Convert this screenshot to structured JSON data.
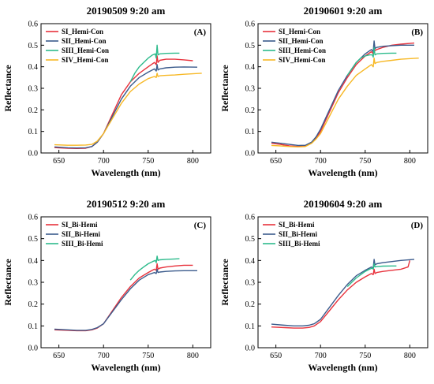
{
  "chart_data": [
    {
      "type": "line",
      "panel": "(A)",
      "title": "20190509 9:20 am",
      "xlabel": "Wavelength (nm)",
      "ylabel": "Reflectance",
      "xlim": [
        630,
        820
      ],
      "ylim": [
        0,
        0.6
      ],
      "xticks": [
        650,
        700,
        750,
        800
      ],
      "yticks": [
        0.0,
        0.1,
        0.2,
        0.3,
        0.4,
        0.5,
        0.6
      ],
      "legend_position": "top-left",
      "grid": false,
      "series": [
        {
          "name": "SI_Hemi-Con",
          "color": "#e8323c",
          "x": [
            645,
            660,
            670,
            680,
            687,
            693,
            700,
            710,
            720,
            730,
            740,
            750,
            757,
            759,
            760,
            761,
            763,
            770,
            780,
            790,
            800
          ],
          "y": [
            0.025,
            0.022,
            0.021,
            0.022,
            0.03,
            0.05,
            0.09,
            0.18,
            0.27,
            0.33,
            0.37,
            0.4,
            0.42,
            0.41,
            0.45,
            0.42,
            0.43,
            0.435,
            0.435,
            0.432,
            0.428
          ]
        },
        {
          "name": "SII_Hemi-Con",
          "color": "#3b5b8c",
          "x": [
            645,
            660,
            670,
            680,
            687,
            693,
            700,
            710,
            720,
            730,
            740,
            750,
            757,
            759,
            760,
            761,
            763,
            770,
            780,
            790,
            805
          ],
          "y": [
            0.028,
            0.024,
            0.023,
            0.024,
            0.03,
            0.05,
            0.09,
            0.17,
            0.25,
            0.31,
            0.35,
            0.375,
            0.39,
            0.38,
            0.41,
            0.385,
            0.39,
            0.395,
            0.398,
            0.399,
            0.398
          ]
        },
        {
          "name": "SIII_Hemi-Con",
          "color": "#2dbb8c",
          "x": [
            730,
            735,
            740,
            745,
            750,
            755,
            758,
            759,
            760,
            761,
            763,
            770,
            780,
            785
          ],
          "y": [
            0.33,
            0.37,
            0.4,
            0.42,
            0.44,
            0.455,
            0.46,
            0.44,
            0.5,
            0.455,
            0.46,
            0.462,
            0.463,
            0.463
          ]
        },
        {
          "name": "SIV_Hemi-Con",
          "color": "#f7b825",
          "x": [
            645,
            660,
            670,
            680,
            687,
            693,
            700,
            710,
            720,
            730,
            740,
            750,
            757,
            759,
            760,
            761,
            763,
            770,
            780,
            790,
            810
          ],
          "y": [
            0.038,
            0.036,
            0.036,
            0.037,
            0.04,
            0.055,
            0.09,
            0.16,
            0.23,
            0.285,
            0.32,
            0.345,
            0.355,
            0.35,
            0.37,
            0.355,
            0.358,
            0.36,
            0.362,
            0.365,
            0.37
          ]
        }
      ]
    },
    {
      "type": "line",
      "panel": "(B)",
      "title": "20190601 9:20 am",
      "xlabel": "Wavelength (nm)",
      "ylabel": "Reflectance",
      "xlim": [
        630,
        820
      ],
      "ylim": [
        0,
        0.6
      ],
      "xticks": [
        650,
        700,
        750,
        800
      ],
      "yticks": [
        0.0,
        0.1,
        0.2,
        0.3,
        0.4,
        0.5,
        0.6
      ],
      "legend_position": "top-left",
      "grid": false,
      "series": [
        {
          "name": "SI_Hemi-Con",
          "color": "#e8323c",
          "x": [
            645,
            655,
            665,
            675,
            683,
            690,
            695,
            700,
            710,
            720,
            730,
            740,
            750,
            757,
            759,
            760,
            761,
            763,
            770,
            780,
            790,
            805
          ],
          "y": [
            0.045,
            0.04,
            0.033,
            0.03,
            0.033,
            0.05,
            0.07,
            0.1,
            0.19,
            0.28,
            0.35,
            0.41,
            0.45,
            0.47,
            0.46,
            0.5,
            0.475,
            0.48,
            0.49,
            0.5,
            0.505,
            0.51
          ]
        },
        {
          "name": "SII_Hemi-Con",
          "color": "#3b5b8c",
          "x": [
            645,
            655,
            665,
            675,
            683,
            690,
            695,
            700,
            710,
            720,
            730,
            740,
            750,
            757,
            759,
            760,
            761,
            763,
            770,
            780,
            790,
            805
          ],
          "y": [
            0.05,
            0.045,
            0.04,
            0.035,
            0.036,
            0.05,
            0.075,
            0.11,
            0.2,
            0.29,
            0.36,
            0.42,
            0.46,
            0.48,
            0.47,
            0.52,
            0.485,
            0.49,
            0.495,
            0.498,
            0.5,
            0.5
          ]
        },
        {
          "name": "SIII_Hemi-Con",
          "color": "#2dbb8c",
          "x": [
            730,
            735,
            740,
            745,
            750,
            755,
            758,
            759,
            760,
            761,
            763,
            770,
            780,
            785
          ],
          "y": [
            0.36,
            0.39,
            0.42,
            0.44,
            0.45,
            0.455,
            0.455,
            0.445,
            0.49,
            0.455,
            0.46,
            0.462,
            0.463,
            0.463
          ]
        },
        {
          "name": "SIV_Hemi-Con",
          "color": "#f7b825",
          "x": [
            645,
            655,
            665,
            675,
            683,
            690,
            695,
            700,
            710,
            720,
            730,
            740,
            750,
            757,
            759,
            760,
            761,
            763,
            770,
            780,
            790,
            810
          ],
          "y": [
            0.035,
            0.033,
            0.03,
            0.028,
            0.03,
            0.045,
            0.065,
            0.09,
            0.17,
            0.25,
            0.31,
            0.36,
            0.39,
            0.41,
            0.4,
            0.44,
            0.415,
            0.42,
            0.425,
            0.43,
            0.435,
            0.44
          ]
        }
      ]
    },
    {
      "type": "line",
      "panel": "(C)",
      "title": "20190512 9:20 am",
      "xlabel": "Wavelength (nm)",
      "ylabel": "Reflectance",
      "xlim": [
        630,
        820
      ],
      "ylim": [
        0,
        0.6
      ],
      "xticks": [
        650,
        700,
        750,
        800
      ],
      "yticks": [
        0.0,
        0.1,
        0.2,
        0.3,
        0.4,
        0.5,
        0.6
      ],
      "legend_position": "top-left",
      "grid": false,
      "series": [
        {
          "name": "SI_Bi-Hemi",
          "color": "#e8323c",
          "x": [
            645,
            660,
            670,
            680,
            687,
            693,
            700,
            710,
            720,
            730,
            740,
            750,
            757,
            759,
            760,
            761,
            763,
            770,
            780,
            790,
            800
          ],
          "y": [
            0.082,
            0.08,
            0.078,
            0.078,
            0.082,
            0.09,
            0.11,
            0.17,
            0.23,
            0.28,
            0.32,
            0.345,
            0.36,
            0.355,
            0.385,
            0.36,
            0.365,
            0.37,
            0.375,
            0.378,
            0.378
          ]
        },
        {
          "name": "SII_Bi-Hemi",
          "color": "#3b5b8c",
          "x": [
            645,
            660,
            670,
            680,
            687,
            693,
            700,
            710,
            720,
            730,
            740,
            750,
            757,
            759,
            760,
            761,
            763,
            770,
            780,
            790,
            805
          ],
          "y": [
            0.085,
            0.082,
            0.08,
            0.08,
            0.084,
            0.092,
            0.11,
            0.165,
            0.22,
            0.27,
            0.31,
            0.335,
            0.345,
            0.34,
            0.36,
            0.345,
            0.347,
            0.35,
            0.352,
            0.353,
            0.353
          ]
        },
        {
          "name": "SIII_Bi-Hemi",
          "color": "#2dbb8c",
          "x": [
            730,
            735,
            740,
            745,
            750,
            755,
            758,
            759,
            760,
            761,
            763,
            770,
            780,
            785
          ],
          "y": [
            0.31,
            0.335,
            0.355,
            0.37,
            0.385,
            0.395,
            0.4,
            0.39,
            0.42,
            0.4,
            0.403,
            0.405,
            0.407,
            0.408
          ]
        }
      ]
    },
    {
      "type": "line",
      "panel": "(D)",
      "title": "20190604 9:20 am",
      "xlabel": "Wavelength (nm)",
      "ylabel": "Reflectance",
      "xlim": [
        630,
        820
      ],
      "ylim": [
        0,
        0.6
      ],
      "xticks": [
        650,
        700,
        750,
        800
      ],
      "yticks": [
        0.0,
        0.1,
        0.2,
        0.3,
        0.4,
        0.5,
        0.6
      ],
      "legend_position": "top-left",
      "grid": false,
      "series": [
        {
          "name": "SI_Bi-Hemi",
          "color": "#e8323c",
          "x": [
            645,
            660,
            670,
            680,
            687,
            693,
            700,
            710,
            720,
            730,
            740,
            750,
            757,
            759,
            760,
            761,
            763,
            770,
            780,
            790,
            798,
            800
          ],
          "y": [
            0.095,
            0.092,
            0.09,
            0.09,
            0.093,
            0.1,
            0.12,
            0.17,
            0.22,
            0.265,
            0.3,
            0.325,
            0.34,
            0.335,
            0.36,
            0.34,
            0.345,
            0.35,
            0.355,
            0.36,
            0.37,
            0.4
          ]
        },
        {
          "name": "SII_Bi-Hemi",
          "color": "#3b5b8c",
          "x": [
            645,
            660,
            670,
            680,
            687,
            693,
            700,
            710,
            720,
            730,
            740,
            750,
            757,
            759,
            760,
            761,
            763,
            770,
            780,
            790,
            805
          ],
          "y": [
            0.108,
            0.103,
            0.1,
            0.1,
            0.103,
            0.11,
            0.13,
            0.185,
            0.24,
            0.29,
            0.33,
            0.355,
            0.37,
            0.365,
            0.405,
            0.38,
            0.385,
            0.39,
            0.395,
            0.4,
            0.405
          ]
        },
        {
          "name": "SIII_Bi-Hemi",
          "color": "#2dbb8c",
          "x": [
            730,
            735,
            740,
            745,
            750,
            755,
            758,
            759,
            760,
            761,
            763,
            770,
            780,
            785
          ],
          "y": [
            0.28,
            0.3,
            0.32,
            0.335,
            0.35,
            0.36,
            0.365,
            0.36,
            0.385,
            0.37,
            0.372,
            0.374,
            0.375,
            0.375
          ]
        }
      ]
    }
  ]
}
